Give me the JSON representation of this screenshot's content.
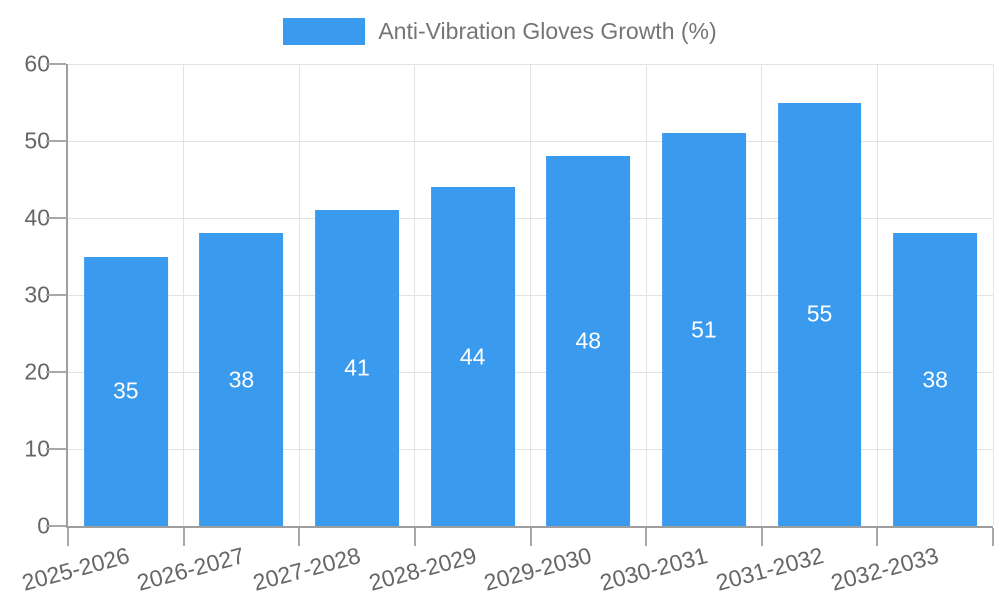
{
  "chart": {
    "legend": {
      "label": "Anti-Vibration Gloves Growth (%)"
    },
    "colors": {
      "bar": "#399AEE",
      "grid": "#E3E3E3",
      "axis": "#9E9E9E",
      "tick": "#A8A8A8",
      "tick_label": "#666666",
      "legend_text": "#757575",
      "value_label": "#FFFFFF",
      "background": "#FFFFFF"
    }
  },
  "chart_data": {
    "type": "bar",
    "title": "Anti-Vibration Gloves Growth (%)",
    "series_name": "Anti-Vibration Gloves Growth (%)",
    "categories": [
      "2025-2026",
      "2026-2027",
      "2027-2028",
      "2028-2029",
      "2029-2030",
      "2030-2031",
      "2031-2032",
      "2032-2033"
    ],
    "values": [
      35,
      38,
      41,
      44,
      48,
      51,
      55,
      38
    ],
    "xlabel": "",
    "ylabel": "",
    "ylim": [
      0,
      60
    ],
    "yticks": [
      0,
      10,
      20,
      30,
      40,
      50,
      60
    ],
    "grid": true,
    "legend_position": "top-center",
    "value_label_position": "inside-center",
    "x_tick_rotation_deg": -15,
    "bar_width_fraction_of_band": 0.725
  }
}
